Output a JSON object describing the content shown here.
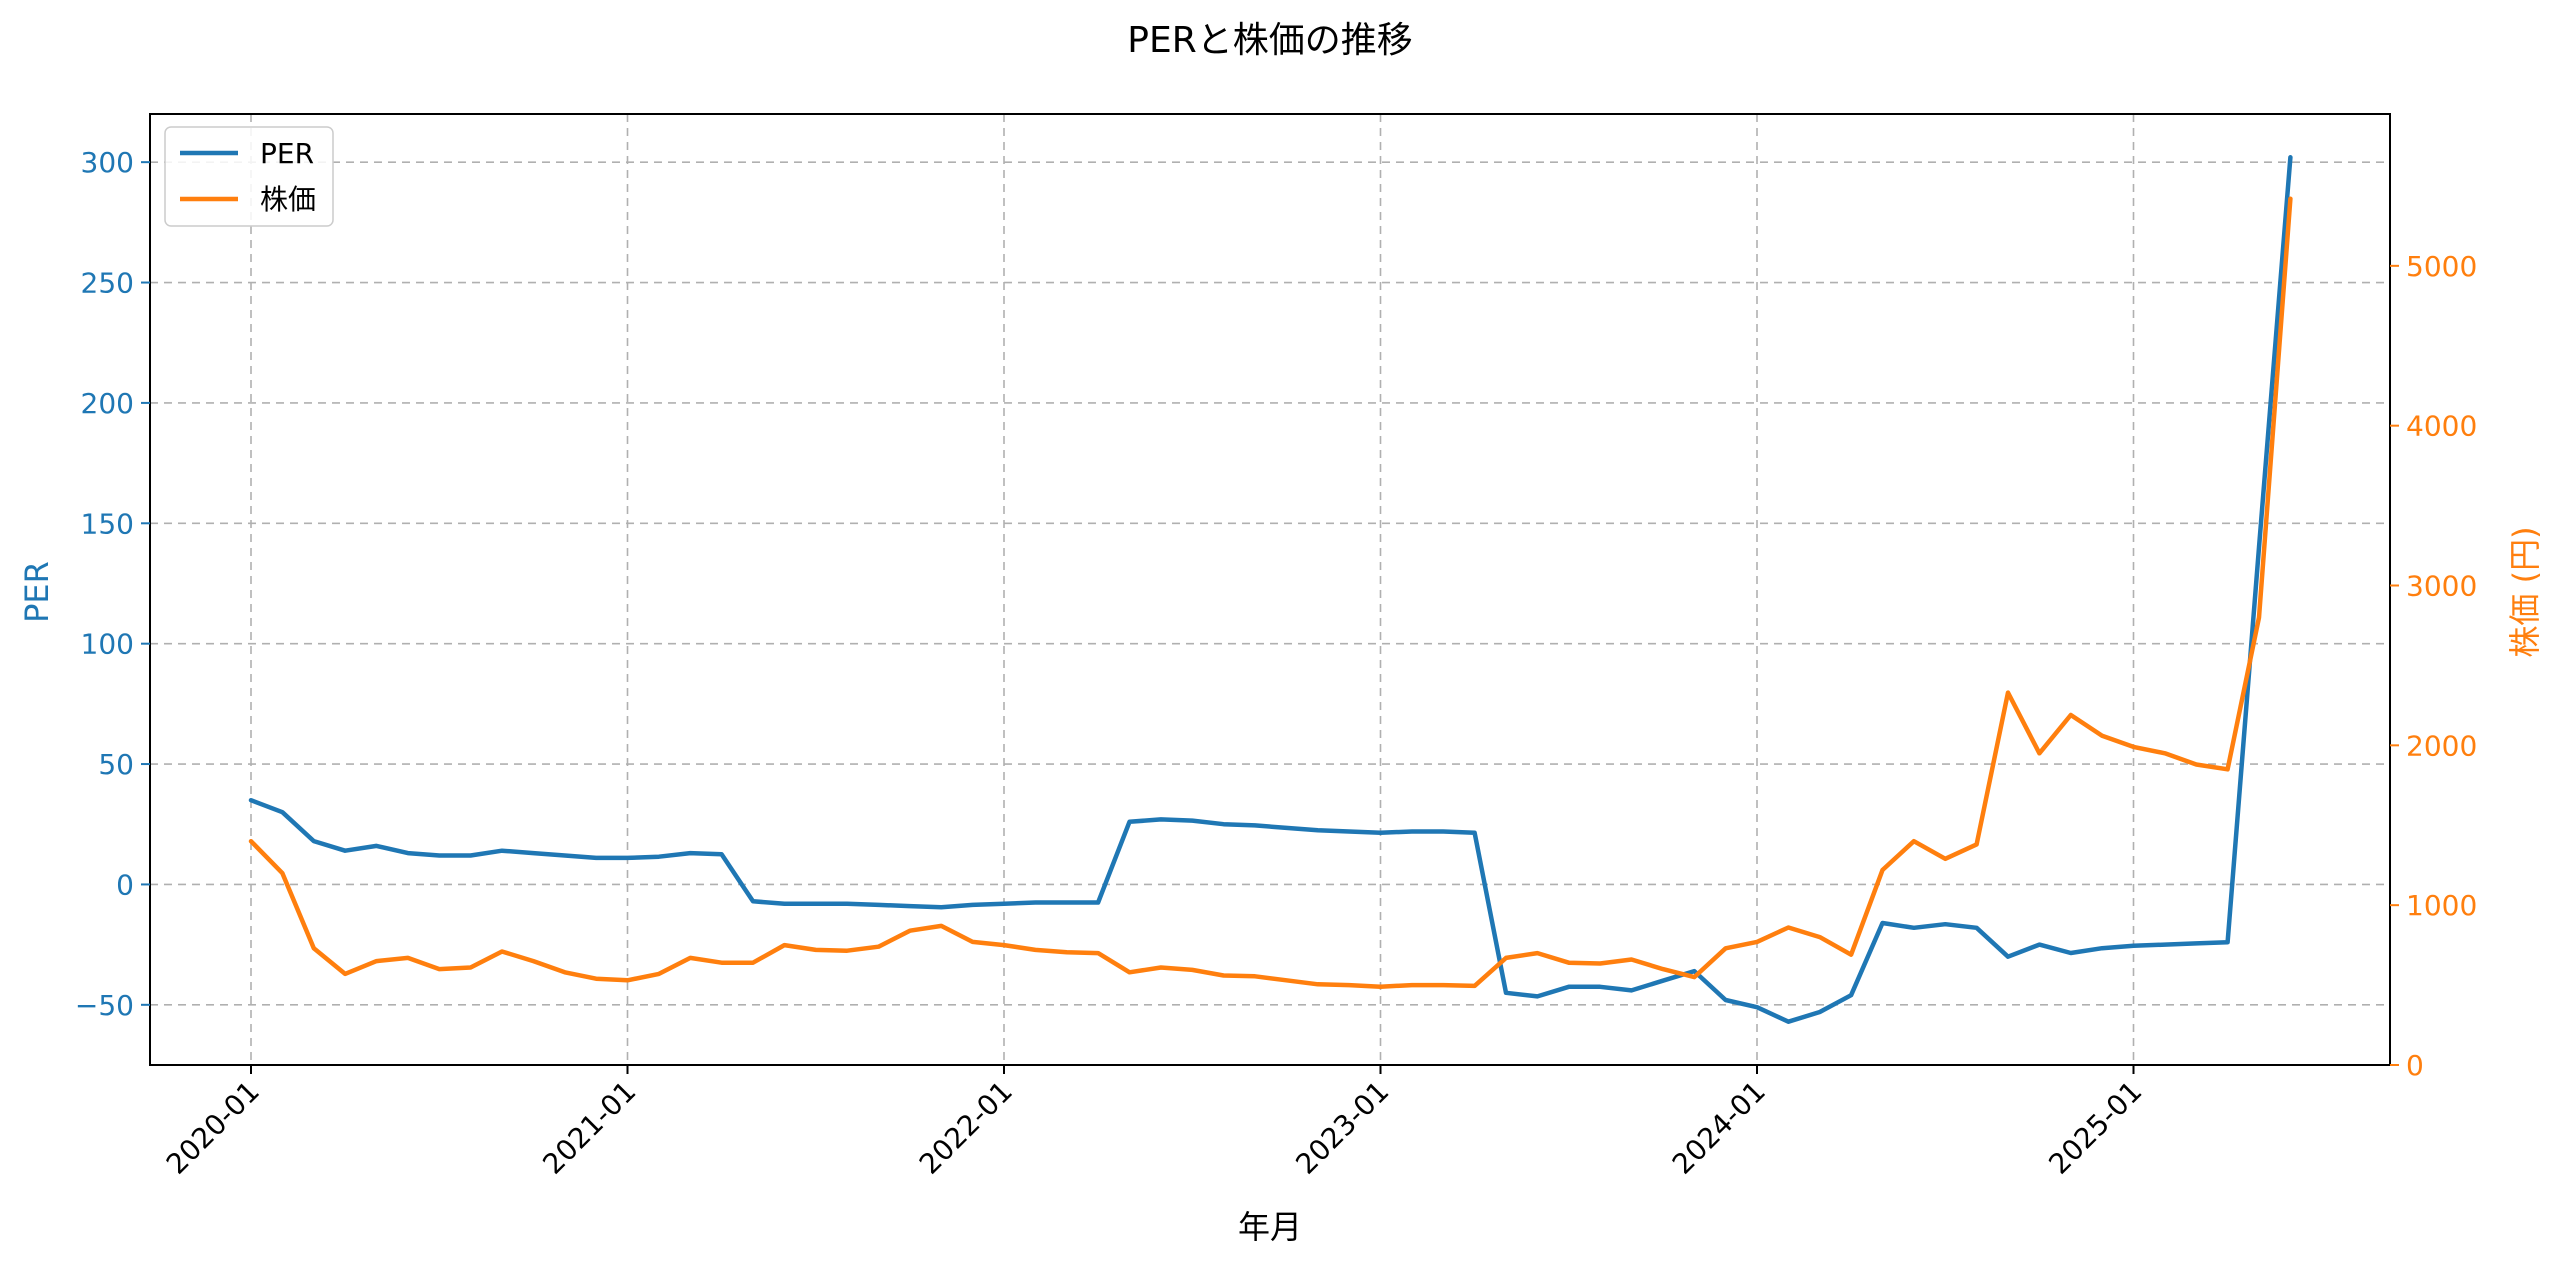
{
  "chart_data": {
    "type": "line",
    "title": "PERと株価の推移",
    "xlabel": "年月",
    "ylabel_left": "PER",
    "ylabel_right": "株価 (円)",
    "x": [
      "2020-01",
      "2020-02",
      "2020-03",
      "2020-04",
      "2020-05",
      "2020-06",
      "2020-07",
      "2020-08",
      "2020-09",
      "2020-10",
      "2020-11",
      "2020-12",
      "2021-01",
      "2021-02",
      "2021-03",
      "2021-04",
      "2021-05",
      "2021-06",
      "2021-07",
      "2021-08",
      "2021-09",
      "2021-10",
      "2021-11",
      "2021-12",
      "2022-01",
      "2022-02",
      "2022-03",
      "2022-04",
      "2022-05",
      "2022-06",
      "2022-07",
      "2022-08",
      "2022-09",
      "2022-10",
      "2022-11",
      "2022-12",
      "2023-01",
      "2023-02",
      "2023-03",
      "2023-04",
      "2023-05",
      "2023-06",
      "2023-07",
      "2023-08",
      "2023-09",
      "2023-10",
      "2023-11",
      "2023-12",
      "2024-01",
      "2024-02",
      "2024-03",
      "2024-04",
      "2024-05",
      "2024-06",
      "2024-07",
      "2024-08",
      "2024-09",
      "2024-10",
      "2024-11",
      "2024-12",
      "2025-01",
      "2025-02",
      "2025-03",
      "2025-04",
      "2025-05",
      "2025-06"
    ],
    "x_ticks": [
      "2020-01",
      "2021-01",
      "2022-01",
      "2023-01",
      "2024-01",
      "2025-01"
    ],
    "ylim_left": [
      -75,
      320
    ],
    "yticks_left": [
      -50,
      0,
      50,
      100,
      150,
      200,
      250,
      300
    ],
    "ylim_right": [
      0,
      5950
    ],
    "yticks_right": [
      0,
      1000,
      2000,
      3000,
      4000,
      5000
    ],
    "grid": true,
    "legend_position": "upper-left",
    "series": [
      {
        "name": "PER",
        "axis": "left",
        "color": "#1f77b4",
        "values": [
          35,
          30,
          18,
          14,
          16,
          13,
          12,
          12,
          14,
          13,
          12,
          11,
          11,
          11.5,
          13,
          12.5,
          -7,
          -8,
          -8,
          -8,
          -8.5,
          -9,
          -9.5,
          -8.5,
          -8,
          -7.5,
          -7.5,
          -7.5,
          26,
          27,
          26.5,
          25,
          24.5,
          23.5,
          22.5,
          22,
          21.5,
          22,
          22,
          21.5,
          -45,
          -46.5,
          -42.5,
          -42.5,
          -44,
          -40,
          -36,
          -48,
          -51,
          -57,
          -53,
          -46,
          -16,
          -18,
          -16.5,
          -18,
          -30,
          -25,
          -28.5,
          -26.5,
          -25.5,
          -25,
          -24.5,
          -24,
          140,
          302
        ]
      },
      {
        "name": "株価",
        "axis": "right",
        "color": "#ff7f0e",
        "values": [
          1400,
          1200,
          730,
          570,
          650,
          670,
          600,
          610,
          710,
          650,
          580,
          540,
          530,
          570,
          670,
          640,
          640,
          750,
          720,
          715,
          740,
          840,
          870,
          770,
          750,
          720,
          705,
          700,
          580,
          610,
          595,
          560,
          555,
          530,
          505,
          500,
          490,
          500,
          500,
          495,
          670,
          700,
          640,
          635,
          660,
          600,
          550,
          730,
          770,
          860,
          800,
          690,
          1220,
          1400,
          1290,
          1380,
          2330,
          1950,
          2190,
          2060,
          1990,
          1950,
          1880,
          1850,
          2800,
          5420
        ]
      }
    ]
  }
}
